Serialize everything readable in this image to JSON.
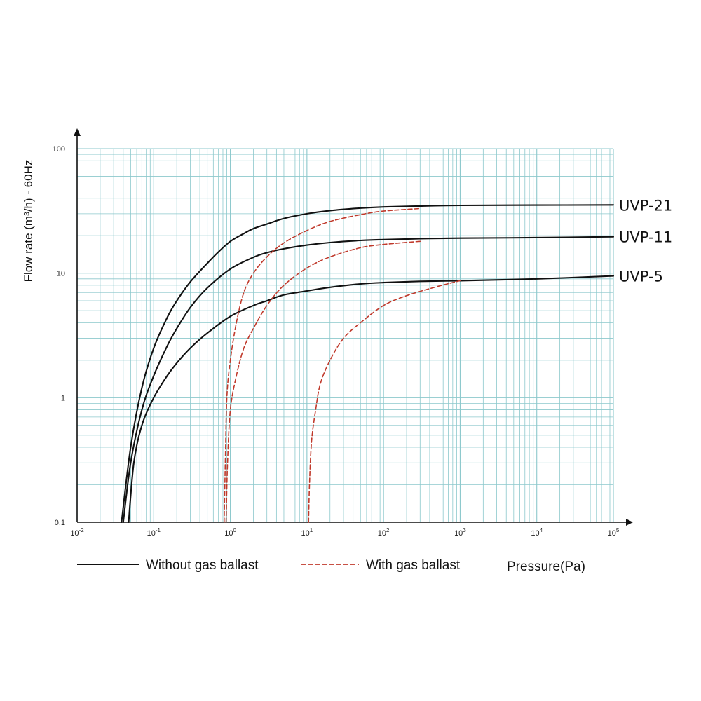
{
  "chart_data": {
    "type": "line",
    "ylabel": "Flow rate (m³/h) - 60Hz",
    "xlabel": "Pressure(Pa)",
    "x_scale": "log",
    "y_scale": "log",
    "xlim": [
      0.01,
      100000
    ],
    "ylim": [
      0.1,
      100
    ],
    "x_ticks": [
      {
        "value": 0.01,
        "base": "10",
        "exp": "-2"
      },
      {
        "value": 0.1,
        "base": "10",
        "exp": "-1"
      },
      {
        "value": 1,
        "base": "10",
        "exp": "0"
      },
      {
        "value": 10,
        "base": "10",
        "exp": "1"
      },
      {
        "value": 100,
        "base": "10",
        "exp": "2"
      },
      {
        "value": 1000,
        "base": "10",
        "exp": "3"
      },
      {
        "value": 10000,
        "base": "10",
        "exp": "4"
      },
      {
        "value": 100000,
        "base": "10",
        "exp": "5"
      }
    ],
    "y_ticks": [
      {
        "value": 0.1,
        "label": "0.1"
      },
      {
        "value": 1,
        "label": "1"
      },
      {
        "value": 10,
        "label": "10"
      },
      {
        "value": 100,
        "label": "100"
      }
    ],
    "grid": true,
    "grid_color": "#8cc8cc",
    "legend": [
      {
        "label": "Without gas ballast",
        "style": "solid",
        "color": "#111111"
      },
      {
        "label": "With gas ballast",
        "style": "dashed",
        "color": "#c0392b"
      }
    ],
    "series": [
      {
        "name": "UVP-21",
        "style": "solid",
        "color": "#111111",
        "x": [
          0.038,
          0.05,
          0.07,
          0.1,
          0.15,
          0.2,
          0.3,
          0.5,
          0.7,
          1,
          1.5,
          2,
          3,
          5,
          10,
          20,
          50,
          100,
          300,
          1000,
          10000,
          100000
        ],
        "y": [
          0.1,
          0.4,
          1.2,
          2.5,
          4.4,
          6,
          8.5,
          12,
          14.8,
          18,
          20.8,
          22.8,
          24.8,
          27.5,
          30,
          31.8,
          33.3,
          34,
          34.6,
          35,
          35.2,
          35.3
        ]
      },
      {
        "name": "UVP-11",
        "style": "solid",
        "color": "#111111",
        "x": [
          0.04,
          0.05,
          0.07,
          0.1,
          0.15,
          0.2,
          0.3,
          0.5,
          1,
          2,
          3,
          5,
          10,
          20,
          50,
          100,
          300,
          1000,
          10000,
          100000
        ],
        "y": [
          0.1,
          0.3,
          0.8,
          1.5,
          2.6,
          3.6,
          5.3,
          7.6,
          10.8,
          13.4,
          14.6,
          15.7,
          16.8,
          17.6,
          18.3,
          18.6,
          18.9,
          19.1,
          19.3,
          19.6
        ]
      },
      {
        "name": "UVP-5",
        "style": "solid",
        "color": "#111111",
        "x": [
          0.047,
          0.055,
          0.07,
          0.1,
          0.15,
          0.2,
          0.3,
          0.5,
          1,
          2,
          3,
          5,
          10,
          20,
          50,
          100,
          300,
          1000,
          10000,
          100000
        ],
        "y": [
          0.1,
          0.3,
          0.6,
          1.0,
          1.5,
          1.9,
          2.5,
          3.3,
          4.5,
          5.5,
          6.0,
          6.7,
          7.2,
          7.7,
          8.2,
          8.4,
          8.6,
          8.7,
          9.0,
          9.5
        ]
      },
      {
        "name": "UVP-21",
        "style": "dashed",
        "color": "#c0392b",
        "x": [
          0.83,
          0.86,
          0.9,
          1,
          1.2,
          1.5,
          2,
          3,
          5,
          10,
          20,
          50,
          100,
          300
        ],
        "y": [
          0.1,
          0.3,
          1.0,
          2.0,
          4.0,
          7.0,
          10.0,
          13.5,
          17.5,
          22.0,
          26.0,
          29.5,
          31.5,
          33.0
        ]
      },
      {
        "name": "UVP-11",
        "style": "dashed",
        "color": "#c0392b",
        "x": [
          0.88,
          0.92,
          1,
          1.2,
          1.5,
          2,
          3,
          5,
          10,
          20,
          50,
          100,
          300
        ],
        "y": [
          0.1,
          0.3,
          0.8,
          1.5,
          2.5,
          3.6,
          5.5,
          8.0,
          11.0,
          13.5,
          16.0,
          17.0,
          18.0
        ]
      },
      {
        "name": "UVP-5",
        "style": "dashed",
        "color": "#c0392b",
        "x": [
          10.5,
          10.8,
          11.5,
          13,
          15,
          20,
          30,
          50,
          100,
          200,
          500,
          1000
        ],
        "y": [
          0.1,
          0.2,
          0.45,
          0.8,
          1.3,
          2.0,
          3.0,
          4.0,
          5.5,
          6.6,
          7.8,
          8.7
        ]
      }
    ],
    "series_labels": [
      "UVP-21",
      "UVP-11",
      "UVP-5"
    ]
  }
}
